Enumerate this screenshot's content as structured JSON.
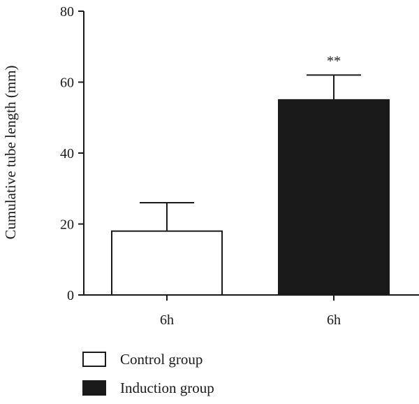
{
  "chart_data": {
    "type": "bar",
    "title": "",
    "xlabel": "",
    "ylabel": "Cumulative tube length (mm)",
    "ylim": [
      0,
      80
    ],
    "yticks": [
      0,
      20,
      40,
      60,
      80
    ],
    "grid": false,
    "legend_position": "bottom-left",
    "categories": [
      "6h",
      "6h"
    ],
    "series": [
      {
        "name": "Control group",
        "value": 18,
        "error": 8,
        "fill": "#ffffff",
        "stroke": "#1a1a1a",
        "annotation": ""
      },
      {
        "name": "Induction group",
        "value": 55,
        "error": 7,
        "fill": "#1a1a1a",
        "stroke": "#1a1a1a",
        "annotation": "**"
      }
    ]
  }
}
